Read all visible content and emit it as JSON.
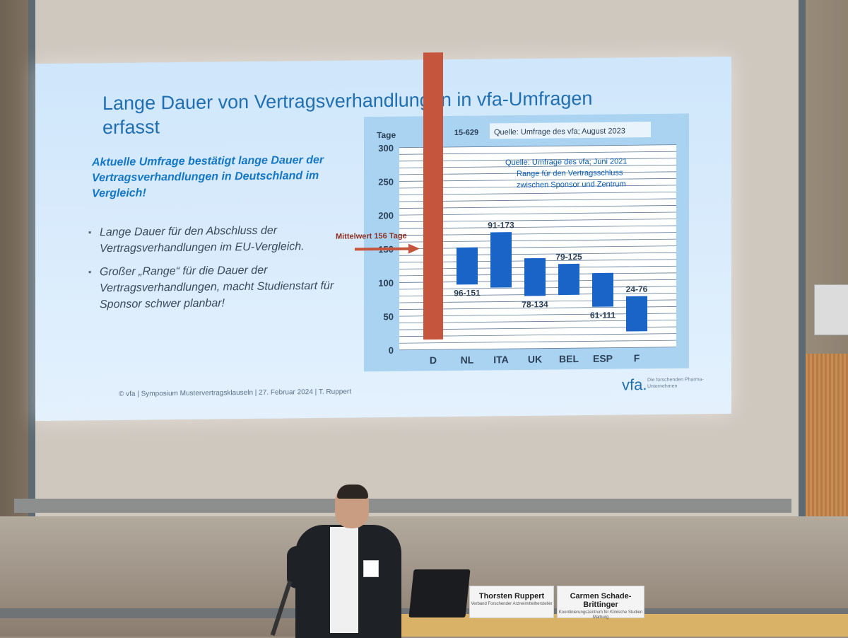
{
  "slide": {
    "title": "Lange Dauer von Vertragsverhandlungen in vfa-Umfragen erfasst",
    "subtitle": "Aktuelle Umfrage bestätigt lange Dauer der Vertragsverhandlungen in Deutschland im Vergleich!",
    "bullets": [
      "Lange Dauer für den Abschluss der Vertragsverhandlungen im EU-Vergleich.",
      "Großer „Range“ für die Dauer der Vertragsverhandlungen, macht Studienstart für Sponsor schwer planbar!"
    ],
    "footer": "© vfa | Symposium Mustervertragsklauseln | 27. Februar 2024 | T. Ruppert",
    "logo": "vfa.",
    "logo_sub": "Die forschenden Pharma-Unternehmen"
  },
  "chart_data": {
    "type": "bar",
    "subtype": "floating-range",
    "ylabel": "Tage",
    "ylim": [
      0,
      300
    ],
    "yticks": [
      0,
      50,
      100,
      150,
      200,
      250,
      300
    ],
    "categories": [
      "D",
      "NL",
      "ITA",
      "UK",
      "BEL",
      "ESP",
      "F"
    ],
    "ranges": [
      [
        15,
        629
      ],
      [
        96,
        151
      ],
      [
        91,
        173
      ],
      [
        78,
        134
      ],
      [
        79,
        125
      ],
      [
        61,
        111
      ],
      [
        24,
        76
      ]
    ],
    "range_labels": [
      "15-629",
      "96-151",
      "91-173",
      "78-134",
      "79-125",
      "61-111",
      "24-76"
    ],
    "colors": {
      "D": "#c6553e",
      "others": "#1a63c7",
      "arrow": "#c6553e",
      "label": "#2b3f57",
      "legend": "#0c5bb0"
    },
    "mean_annotation": "Mittelwert 156 Tage",
    "mean_value": 156,
    "source_top": "Quelle: Umfrage des vfa; August 2023",
    "source_legend": "Quelle: Umfrage des vfa; Juni 2021",
    "legend_lines": [
      "Range für den Vertragsschluss",
      "zwischen Sponsor und Zentrum"
    ]
  },
  "room": {
    "nameplates": [
      {
        "name": "Thorsten Ruppert",
        "org": "Verband Forschender Arzneimittelhersteller"
      },
      {
        "name": "Carmen Schade-Brittinger",
        "org": "Koordinierungszentrum für Klinische Studien Marburg"
      }
    ]
  }
}
